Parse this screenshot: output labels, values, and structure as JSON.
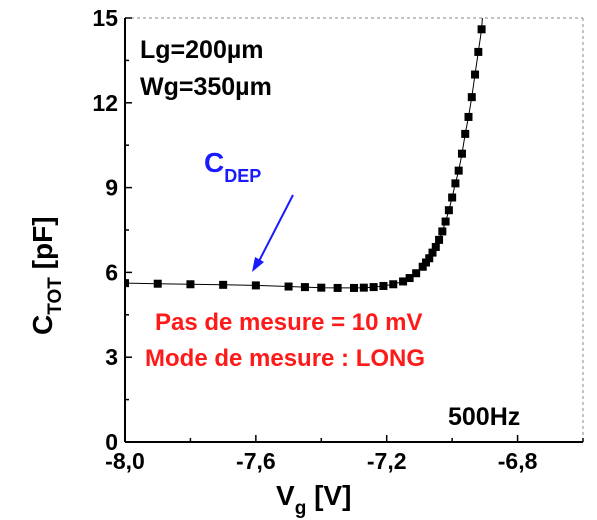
{
  "chart_data": {
    "type": "scatter",
    "xlabel": {
      "main": "V",
      "sub": "g",
      "unit": " [V]"
    },
    "ylabel": {
      "main": "C",
      "sub": "TOT",
      "unit": " [pF]"
    },
    "xlim": [
      -8.0,
      -6.6
    ],
    "ylim": [
      0,
      15
    ],
    "xticks": [
      -8.0,
      -7.6,
      -7.2,
      -6.8
    ],
    "xtick_labels": [
      "-8,0",
      "-7,6",
      "-7,2",
      "-6,8"
    ],
    "yticks": [
      0,
      3,
      6,
      9,
      12,
      15
    ],
    "ytick_labels": [
      "0",
      "3",
      "6",
      "9",
      "12",
      "15"
    ],
    "grid": false,
    "series": [
      {
        "color": "#000000",
        "marker": "square",
        "points": [
          [
            -8.0,
            5.62
          ],
          [
            -7.9,
            5.6
          ],
          [
            -7.8,
            5.58
          ],
          [
            -7.7,
            5.56
          ],
          [
            -7.6,
            5.54
          ],
          [
            -7.5,
            5.5
          ],
          [
            -7.45,
            5.48
          ],
          [
            -7.4,
            5.46
          ],
          [
            -7.35,
            5.45
          ],
          [
            -7.3,
            5.45
          ],
          [
            -7.27,
            5.46
          ],
          [
            -7.24,
            5.48
          ],
          [
            -7.21,
            5.52
          ],
          [
            -7.18,
            5.58
          ],
          [
            -7.15,
            5.68
          ],
          [
            -7.13,
            5.8
          ],
          [
            -7.11,
            5.97
          ],
          [
            -7.09,
            6.2
          ],
          [
            -7.08,
            6.35
          ],
          [
            -7.07,
            6.5
          ],
          [
            -7.06,
            6.7
          ],
          [
            -7.05,
            6.9
          ],
          [
            -7.04,
            7.15
          ],
          [
            -7.03,
            7.45
          ],
          [
            -7.02,
            7.8
          ],
          [
            -7.01,
            8.2
          ],
          [
            -7.0,
            8.65
          ],
          [
            -6.99,
            9.15
          ],
          [
            -6.98,
            9.6
          ],
          [
            -6.97,
            10.2
          ],
          [
            -6.96,
            10.9
          ],
          [
            -6.95,
            11.5
          ],
          [
            -6.94,
            12.2
          ],
          [
            -6.93,
            13.0
          ],
          [
            -6.92,
            13.8
          ],
          [
            -6.91,
            14.6
          ]
        ]
      }
    ],
    "annotations": {
      "lg": "Lg=200µm",
      "wg": "Wg=350µm",
      "cdep_main": "C",
      "cdep_sub": "DEP",
      "pas": "Pas de mesure = 10 mV",
      "mode": "Mode de mesure : LONG",
      "freq": "500Hz"
    }
  }
}
